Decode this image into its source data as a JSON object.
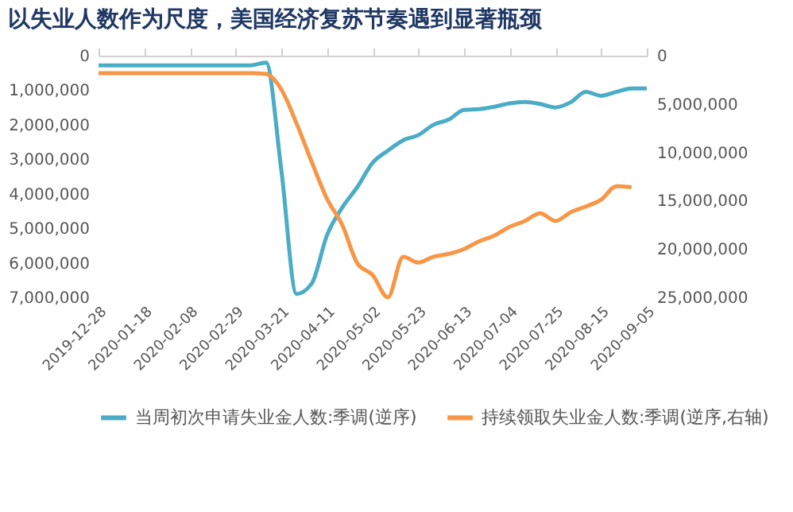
{
  "chart_data": {
    "type": "line",
    "title": "以失业人数作为尺度，美国经济复苏节奏遇到显著瓶颈",
    "xlim": [
      "2019-12-28",
      "2020-09-05"
    ],
    "xticks": [
      "2019-12-28",
      "2020-01-18",
      "2020-02-08",
      "2020-02-29",
      "2020-03-21",
      "2020-04-11",
      "2020-05-02",
      "2020-05-23",
      "2020-06-13",
      "2020-07-04",
      "2020-07-25",
      "2020-08-15",
      "2020-09-05"
    ],
    "ylim": [
      7000000,
      0
    ],
    "yticks": [
      {
        "value": 0,
        "label": "0"
      },
      {
        "value": 1000000,
        "label": "1,000,000"
      },
      {
        "value": 2000000,
        "label": "2,000,000"
      },
      {
        "value": 3000000,
        "label": "3,000,000"
      },
      {
        "value": 4000000,
        "label": "4,000,000"
      },
      {
        "value": 5000000,
        "label": "5,000,000"
      },
      {
        "value": 6000000,
        "label": "6,000,000"
      },
      {
        "value": 7000000,
        "label": "7,000,000"
      }
    ],
    "y2lim": [
      25000000,
      0
    ],
    "y2ticks": [
      {
        "value": 0,
        "label": "0"
      },
      {
        "value": 5000000,
        "label": "5,000,000"
      },
      {
        "value": 10000000,
        "label": "10,000,000"
      },
      {
        "value": 15000000,
        "label": "15,000,000"
      },
      {
        "value": 20000000,
        "label": "20,000,000"
      },
      {
        "value": 25000000,
        "label": "25,000,000"
      }
    ],
    "grid": false,
    "legend": "bottom",
    "marker": "none",
    "line_style": "solid",
    "series": [
      {
        "name": "当周初次申请失业金人数:季调(逆序)",
        "color": "#4bacc6",
        "x": [
          "2019-12-28",
          "2020-01-04",
          "2020-01-11",
          "2020-01-18",
          "2020-01-25",
          "2020-02-01",
          "2020-02-08",
          "2020-02-15",
          "2020-02-22",
          "2020-02-29",
          "2020-03-07",
          "2020-03-14",
          "2020-03-21",
          "2020-03-28",
          "2020-04-04",
          "2020-04-11",
          "2020-04-18",
          "2020-04-25",
          "2020-05-02",
          "2020-05-09",
          "2020-05-16",
          "2020-05-23",
          "2020-05-30",
          "2020-06-06",
          "2020-06-13",
          "2020-06-20",
          "2020-06-27",
          "2020-07-04",
          "2020-07-11",
          "2020-07-18",
          "2020-07-25",
          "2020-08-01",
          "2020-08-08",
          "2020-08-15",
          "2020-08-22",
          "2020-08-29",
          "2020-09-05"
        ],
        "values": [
          280000,
          280000,
          280000,
          280000,
          280000,
          280000,
          280000,
          280000,
          280000,
          280000,
          280000,
          200000,
          3300000,
          6900000,
          6600000,
          5200000,
          4400000,
          3800000,
          3100000,
          2750000,
          2450000,
          2300000,
          2000000,
          1850000,
          1570000,
          1550000,
          1480000,
          1380000,
          1340000,
          1400000,
          1500000,
          1350000,
          1050000,
          1160000,
          1050000,
          950000,
          950000
        ]
      },
      {
        "name": "持续领取失业金人数:季调(逆序,右轴)",
        "color": "#f79646",
        "axis": "y2",
        "x": [
          "2019-12-28",
          "2020-01-04",
          "2020-01-11",
          "2020-01-18",
          "2020-01-25",
          "2020-02-01",
          "2020-02-08",
          "2020-02-15",
          "2020-02-22",
          "2020-02-29",
          "2020-03-07",
          "2020-03-14",
          "2020-03-21",
          "2020-03-28",
          "2020-04-04",
          "2020-04-11",
          "2020-04-18",
          "2020-04-25",
          "2020-05-02",
          "2020-05-09",
          "2020-05-16",
          "2020-05-23",
          "2020-05-30",
          "2020-06-06",
          "2020-06-13",
          "2020-06-20",
          "2020-06-27",
          "2020-07-04",
          "2020-07-11",
          "2020-07-18",
          "2020-07-25",
          "2020-08-01",
          "2020-08-08",
          "2020-08-15",
          "2020-08-22",
          "2020-08-29"
        ],
        "values": [
          1800000,
          1800000,
          1800000,
          1800000,
          1800000,
          1800000,
          1800000,
          1800000,
          1800000,
          1800000,
          1800000,
          1900000,
          3500000,
          7000000,
          11000000,
          14800000,
          17500000,
          21500000,
          22700000,
          25000000,
          20800000,
          21400000,
          20800000,
          20500000,
          20000000,
          19200000,
          18600000,
          17700000,
          17100000,
          16300000,
          17100000,
          16200000,
          15600000,
          14900000,
          13500000,
          13600000
        ]
      }
    ]
  }
}
